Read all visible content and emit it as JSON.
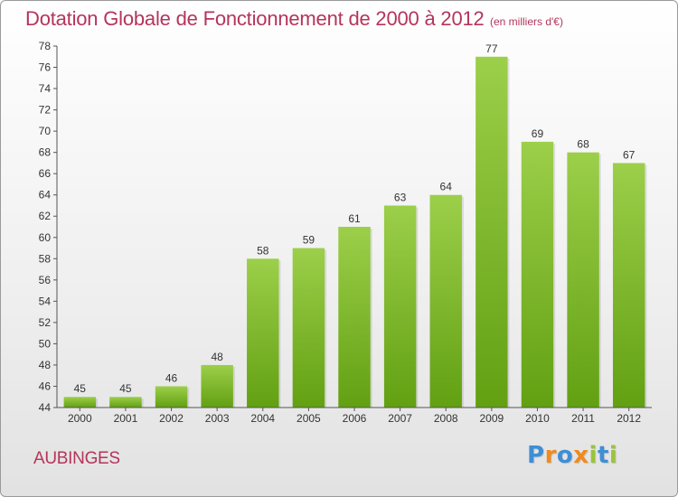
{
  "header": {
    "title": "Dotation Globale de Fonctionnement de 2000 à 2012",
    "unit": "(en milliers d'€)"
  },
  "footer": {
    "commune": "AUBINGES",
    "logo_letters": [
      "P",
      "r",
      "o",
      "x",
      "i",
      "t",
      "i"
    ]
  },
  "colors": {
    "title": "#b5345c",
    "bar_light": "#9ccf4a",
    "bar_dark": "#62a012",
    "axis": "#555555",
    "grid": "#cccccc"
  },
  "chart_data": {
    "type": "bar",
    "title": "Dotation Globale de Fonctionnement de 2000 à 2012",
    "subtitle": "(en milliers d'€)",
    "xlabel": "",
    "ylabel": "",
    "categories": [
      "2000",
      "2001",
      "2002",
      "2003",
      "2004",
      "2005",
      "2006",
      "2007",
      "2008",
      "2009",
      "2010",
      "2011",
      "2012"
    ],
    "values": [
      45,
      45,
      46,
      48,
      58,
      59,
      61,
      63,
      64,
      77,
      69,
      68,
      67
    ],
    "ylim": [
      44,
      78
    ],
    "yticks": [
      44,
      46,
      48,
      50,
      52,
      54,
      56,
      58,
      60,
      62,
      64,
      66,
      68,
      70,
      72,
      74,
      76,
      78
    ],
    "grid": false,
    "legend": "none"
  }
}
